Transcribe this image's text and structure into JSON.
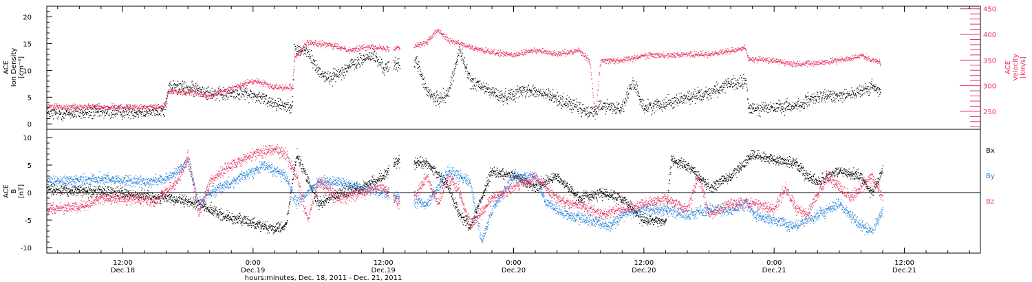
{
  "chart_data": {
    "type": "scatter",
    "xlabel": "hours:minutes, Dec. 18, 2011 - Dec. 21, 2011",
    "x_ticks": [
      {
        "hour": 12,
        "time": "12:00",
        "date": "Dec.18"
      },
      {
        "hour": 24,
        "time": "0:00",
        "date": "Dec.19"
      },
      {
        "hour": 36,
        "time": "12:00",
        "date": "Dec.19"
      },
      {
        "hour": 48,
        "time": "0:00",
        "date": "Dec.20"
      },
      {
        "hour": 60,
        "time": "12:00",
        "date": "Dec.20"
      },
      {
        "hour": 72,
        "time": "0:00",
        "date": "Dec.21"
      },
      {
        "hour": 84,
        "time": "12:00",
        "date": "Dec.21"
      }
    ],
    "xlim": [
      5,
      91
    ],
    "colors": {
      "black": "#000000",
      "pink": "#e8335e",
      "blue": "#1e7fdc"
    },
    "top_panel": {
      "ylabel_left": [
        "ACE",
        "Ion Density",
        "[cm⁻³]"
      ],
      "ylabel_right": [
        "ACE",
        "Velocity",
        "[km/s]"
      ],
      "ylim_left": [
        -1,
        22
      ],
      "ylim_right": [
        215,
        455
      ],
      "left_ticks": [
        0,
        5,
        10,
        15,
        20
      ],
      "right_ticks": [
        250,
        300,
        350,
        400,
        450
      ],
      "gaps": [
        [
          36.5,
          36.9
        ],
        [
          37.5,
          38.8
        ]
      ],
      "density_keys": [
        [
          5,
          2.0
        ],
        [
          15,
          2.5
        ],
        [
          15.8,
          2.5
        ],
        [
          16.2,
          7.0
        ],
        [
          19,
          6.5
        ],
        [
          21,
          5.5
        ],
        [
          23,
          6.0
        ],
        [
          26,
          4.0
        ],
        [
          27,
          3.5
        ],
        [
          27.6,
          3.8
        ],
        [
          27.8,
          14.0
        ],
        [
          29,
          13.5
        ],
        [
          30,
          10.0
        ],
        [
          31,
          8.5
        ],
        [
          33,
          11.0
        ],
        [
          35,
          13.0
        ],
        [
          36,
          10.5
        ],
        [
          39,
          12.0
        ],
        [
          40,
          6.0
        ],
        [
          41,
          4.5
        ],
        [
          42,
          6.0
        ],
        [
          43,
          14.0
        ],
        [
          44,
          8.0
        ],
        [
          45,
          7.0
        ],
        [
          47,
          5.0
        ],
        [
          49,
          6.5
        ],
        [
          51,
          5.5
        ],
        [
          53,
          4.0
        ],
        [
          55,
          2.0
        ],
        [
          56,
          3.5
        ],
        [
          58,
          3.0
        ],
        [
          59,
          8.0
        ],
        [
          60,
          3.0
        ],
        [
          62,
          4.0
        ],
        [
          64,
          5.0
        ],
        [
          66,
          6.0
        ],
        [
          68,
          7.5
        ],
        [
          69.4,
          8.0
        ],
        [
          69.6,
          3.0
        ],
        [
          72,
          3.0
        ],
        [
          74,
          3.5
        ],
        [
          76,
          5.0
        ],
        [
          78,
          5.5
        ],
        [
          80,
          6.0
        ],
        [
          81,
          7.0
        ],
        [
          81.8,
          6.0
        ]
      ],
      "velocity_keys": [
        [
          5,
          260
        ],
        [
          15,
          258
        ],
        [
          15.8,
          260
        ],
        [
          16.2,
          290
        ],
        [
          19,
          285
        ],
        [
          20,
          280
        ],
        [
          22,
          295
        ],
        [
          24,
          310
        ],
        [
          25,
          305
        ],
        [
          26,
          298
        ],
        [
          27.6,
          298
        ],
        [
          27.8,
          355
        ],
        [
          29,
          385
        ],
        [
          31,
          380
        ],
        [
          33,
          370
        ],
        [
          35,
          378
        ],
        [
          36,
          372
        ],
        [
          39,
          380
        ],
        [
          40,
          385
        ],
        [
          41,
          410
        ],
        [
          42,
          390
        ],
        [
          44,
          375
        ],
        [
          46,
          365
        ],
        [
          48,
          360
        ],
        [
          50,
          370
        ],
        [
          52,
          362
        ],
        [
          54,
          370
        ],
        [
          55,
          348
        ],
        [
          55.5,
          240
        ],
        [
          56,
          350
        ],
        [
          58,
          350
        ],
        [
          60,
          360
        ],
        [
          62,
          360
        ],
        [
          64,
          362
        ],
        [
          66,
          362
        ],
        [
          68,
          368
        ],
        [
          69.3,
          375
        ],
        [
          69.6,
          352
        ],
        [
          72,
          350
        ],
        [
          74,
          342
        ],
        [
          76,
          345
        ],
        [
          78,
          350
        ],
        [
          80,
          360
        ],
        [
          81.8,
          345
        ]
      ]
    },
    "bottom_panel": {
      "ylabel": [
        "ACE",
        "B",
        "[nT]"
      ],
      "ylim": [
        -11,
        11.5
      ],
      "ticks": [
        -10,
        -5,
        0,
        5,
        10
      ],
      "legend": [
        "Bx",
        "By",
        "Bz"
      ],
      "gaps": [
        [
          36.5,
          36.9
        ],
        [
          37.5,
          38.8
        ]
      ],
      "bx_keys": [
        [
          5,
          0.5
        ],
        [
          10,
          0.3
        ],
        [
          14,
          -0.5
        ],
        [
          16,
          -1
        ],
        [
          19,
          -2
        ],
        [
          21,
          -4
        ],
        [
          23,
          -5
        ],
        [
          25,
          -6
        ],
        [
          26,
          -6.5
        ],
        [
          27,
          -6
        ],
        [
          28,
          7
        ],
        [
          30,
          -2
        ],
        [
          32,
          0
        ],
        [
          34,
          1
        ],
        [
          36,
          3
        ],
        [
          37,
          5.5
        ],
        [
          40,
          5.5
        ],
        [
          42,
          1
        ],
        [
          43,
          -4
        ],
        [
          44,
          -6
        ],
        [
          46,
          4
        ],
        [
          48,
          3
        ],
        [
          50,
          1
        ],
        [
          52,
          3
        ],
        [
          54,
          -1
        ],
        [
          56,
          0
        ],
        [
          58,
          -1
        ],
        [
          60,
          -5
        ],
        [
          62,
          -5
        ],
        [
          62.5,
          6
        ],
        [
          64,
          5
        ],
        [
          66,
          1
        ],
        [
          68,
          3
        ],
        [
          69.5,
          6
        ],
        [
          70,
          7
        ],
        [
          72,
          6
        ],
        [
          74,
          5.5
        ],
        [
          75,
          3
        ],
        [
          76,
          2
        ],
        [
          78,
          4
        ],
        [
          80,
          3
        ],
        [
          81,
          0
        ],
        [
          82,
          4
        ]
      ],
      "by_keys": [
        [
          5,
          2
        ],
        [
          10,
          2.5
        ],
        [
          14,
          2
        ],
        [
          16,
          2.5
        ],
        [
          18,
          5.5
        ],
        [
          19,
          -2
        ],
        [
          20,
          0
        ],
        [
          21,
          1
        ],
        [
          23,
          3
        ],
        [
          25,
          5
        ],
        [
          27,
          3
        ],
        [
          28,
          -2
        ],
        [
          30,
          2
        ],
        [
          32,
          2
        ],
        [
          34,
          1
        ],
        [
          36,
          0
        ],
        [
          38,
          -1
        ],
        [
          40,
          -2
        ],
        [
          42,
          4
        ],
        [
          44,
          2
        ],
        [
          45,
          -9
        ],
        [
          46,
          -3
        ],
        [
          48,
          3
        ],
        [
          50,
          3
        ],
        [
          51,
          -2
        ],
        [
          53,
          -4
        ],
        [
          55,
          -5
        ],
        [
          57,
          -6
        ],
        [
          58,
          -4
        ],
        [
          60,
          -3
        ],
        [
          62,
          -3
        ],
        [
          64,
          -4
        ],
        [
          66,
          -3
        ],
        [
          68,
          -3
        ],
        [
          69.5,
          -2
        ],
        [
          70,
          -4
        ],
        [
          72,
          -5
        ],
        [
          74,
          -6
        ],
        [
          76,
          -4
        ],
        [
          78,
          -2
        ],
        [
          80,
          -6
        ],
        [
          81,
          -7
        ],
        [
          82,
          -3
        ]
      ],
      "bz_keys": [
        [
          5,
          -3
        ],
        [
          8,
          -2.5
        ],
        [
          10,
          -1
        ],
        [
          13,
          -1
        ],
        [
          15,
          -1.5
        ],
        [
          17,
          2
        ],
        [
          18,
          7
        ],
        [
          19,
          -4
        ],
        [
          20,
          2
        ],
        [
          22,
          5
        ],
        [
          24,
          7
        ],
        [
          26,
          8
        ],
        [
          27,
          7
        ],
        [
          28,
          3
        ],
        [
          29,
          -5
        ],
        [
          30,
          2
        ],
        [
          32,
          -1
        ],
        [
          34,
          0
        ],
        [
          36,
          1
        ],
        [
          38,
          -3
        ],
        [
          40,
          3
        ],
        [
          41,
          -2
        ],
        [
          42,
          3
        ],
        [
          43,
          0
        ],
        [
          44,
          -6
        ],
        [
          46,
          -1
        ],
        [
          48,
          1
        ],
        [
          50,
          3
        ],
        [
          52,
          -1
        ],
        [
          53,
          -2
        ],
        [
          54,
          -2
        ],
        [
          56,
          -4
        ],
        [
          58,
          -3
        ],
        [
          60,
          -2
        ],
        [
          62,
          -1
        ],
        [
          64,
          -3
        ],
        [
          65,
          3
        ],
        [
          66,
          -4
        ],
        [
          68,
          -2
        ],
        [
          70,
          -2
        ],
        [
          72,
          -3
        ],
        [
          73,
          1
        ],
        [
          74,
          -3
        ],
        [
          75,
          -4
        ],
        [
          76,
          0
        ],
        [
          77,
          3
        ],
        [
          79,
          -1
        ],
        [
          80,
          1
        ],
        [
          81,
          3
        ],
        [
          82,
          -1
        ]
      ]
    }
  }
}
